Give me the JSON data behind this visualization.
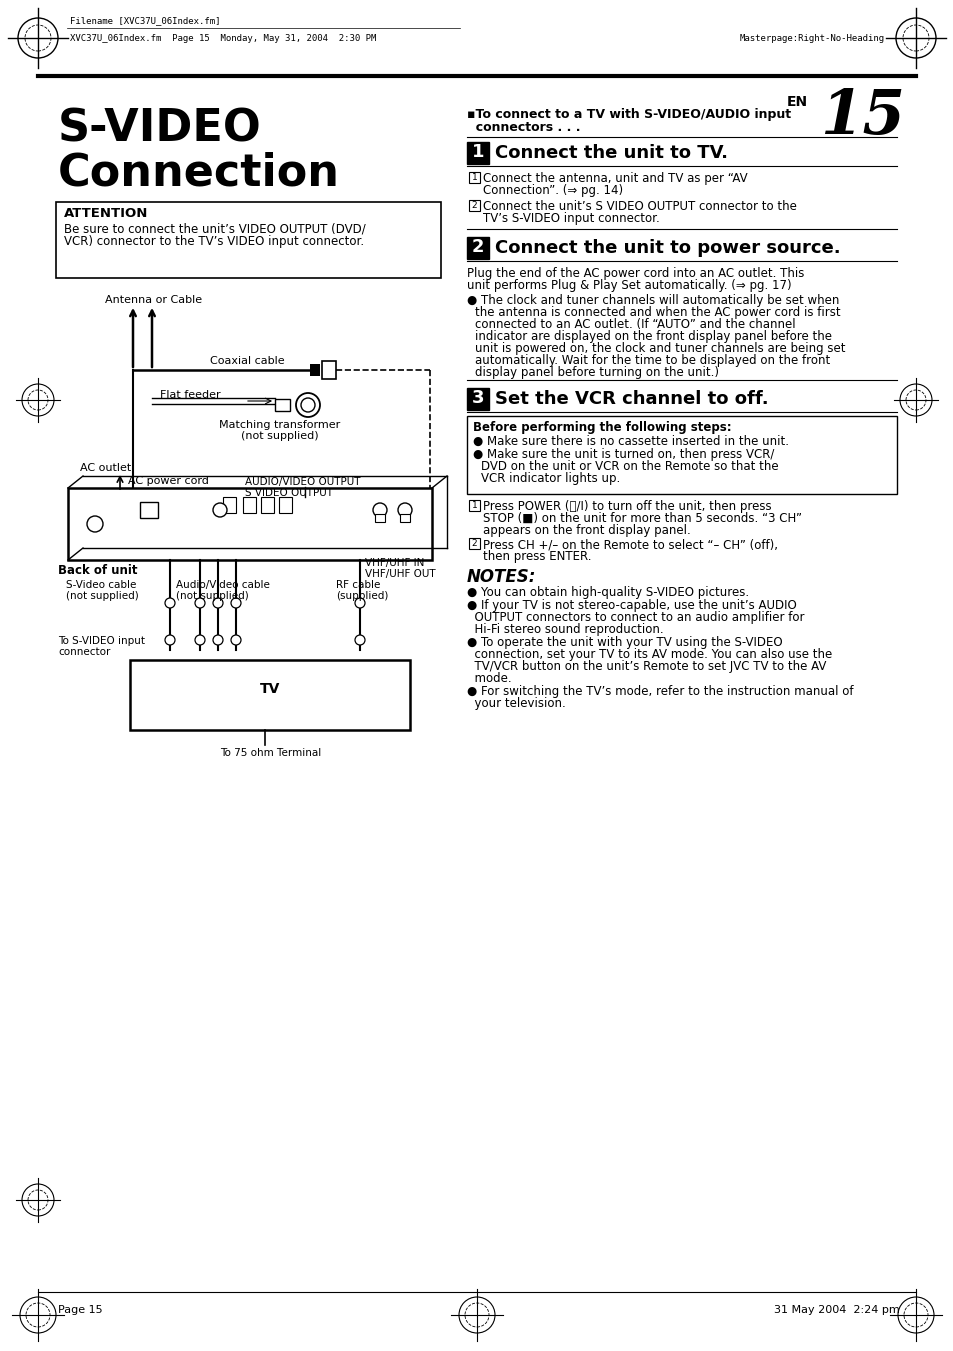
{
  "page_bg": "#ffffff",
  "header_left_text": "Filename [XVC37U_06Index.fm]",
  "header_meta": "XVC37U_06Index.fm  Page 15  Monday, May 31, 2004  2:30 PM",
  "header_right": "Masterpage:Right-No-Heading",
  "page_num": "15",
  "en_label": "EN",
  "footer_left": "Page 15",
  "footer_right": "31 May 2004  2:24 pm",
  "title_line1": "S-VIDEO",
  "title_line2": "Connection",
  "attention_title": "ATTENTION",
  "attention_body1": "Be sure to connect the unit’s VIDEO OUTPUT (DVD/",
  "attention_body2": "VCR) connector to the TV’s VIDEO input connector.",
  "section_intro1": "▪To connect to a TV with S-VIDEO/AUDIO input",
  "section_intro2": "  connectors . . .",
  "step1_num": "1",
  "step1_title": "Connect the unit to TV.",
  "step1_1a": "Connect the antenna, unit and TV as per “AV",
  "step1_1b": "Connection”. (⇒ pg. 14)",
  "step1_2a": "Connect the unit’s S VIDEO OUTPUT connector to the",
  "step1_2b": "TV’s S-VIDEO input connector.",
  "step2_num": "2",
  "step2_title": "Connect the unit to power source.",
  "step2_para1a": "Plug the end of the AC power cord into an AC outlet. This",
  "step2_para1b": "unit performs Plug & Play Set automatically. (⇒ pg. 17)",
  "step2_bullet1a": "The clock and tuner channels will automatically be set when",
  "step2_bullet1b": "the antenna is connected and when the AC power cord is first",
  "step2_bullet1c": "connected to an AC outlet. (If “AUTO” and the channel",
  "step2_bullet1d": "indicator are displayed on the front display panel before the",
  "step2_bullet1e": "unit is powered on, the clock and tuner channels are being set",
  "step2_bullet1f": "automatically. Wait for the time to be displayed on the front",
  "step2_bullet1g": "display panel before turning on the unit.)",
  "step3_num": "3",
  "step3_title": "Set the VCR channel to off.",
  "before_box_title": "Before performing the following steps:",
  "before_box_1": "Make sure there is no cassette inserted in the unit.",
  "before_box_2a": "Make sure the unit is turned on, then press VCR/",
  "before_box_2b": "DVD on the unit or VCR on the Remote so that the",
  "before_box_2c": "VCR indicator lights up.",
  "step3_1a": "Press POWER (⏻/I) to turn off the unit, then press",
  "step3_1b": "STOP (■) on the unit for more than 5 seconds. “3 CH”",
  "step3_1c": "appears on the front display panel.",
  "step3_2a": "Press CH +/– on the Remote to select “– CH” (off),",
  "step3_2b": "then press ENTER.",
  "notes_title": "NOTES:",
  "note1": "● You can obtain high-quality S-VIDEO pictures.",
  "note2a": "● If your TV is not stereo-capable, use the unit’s AUDIO",
  "note2b": "  OUTPUT connectors to connect to an audio amplifier for",
  "note2c": "  Hi-Fi stereo sound reproduction.",
  "note3a": "● To operate the unit with your TV using the S-VIDEO",
  "note3b": "  connection, set your TV to its AV mode. You can also use the",
  "note3c": "  TV/VCR button on the unit’s Remote to set JVC TV to the AV",
  "note3d": "  mode.",
  "note4a": "● For switching the TV’s mode, refer to the instruction manual of",
  "note4b": "  your television.",
  "diag_antenna": "Antenna or Cable",
  "diag_coaxial": "Coaxial cable",
  "diag_flat": "Flat feeder",
  "diag_matching1": "Matching transformer",
  "diag_matching2": "(not supplied)",
  "diag_ac_outlet": "AC outlet",
  "diag_ac_cord": "AC power cord",
  "diag_audio_out": "AUDIO/VIDEO OUTPUT",
  "diag_svideo_out": "S VIDEO OUTPUT",
  "diag_back": "Back of unit",
  "diag_vhf_in": "VHF/UHF IN",
  "diag_vhf_out": "VHF/UHF OUT",
  "diag_svideo_cable1": "S-Video cable",
  "diag_svideo_cable2": "(not supplied)",
  "diag_audio_cable1": "Audio/Video cable",
  "diag_audio_cable2": "(not supplied)",
  "diag_rf_cable1": "RF cable",
  "diag_rf_cable2": "(supplied)",
  "diag_sv_input1": "To S-VIDEO input",
  "diag_sv_input2": "connector",
  "diag_tv": "TV",
  "diag_75ohm": "To 75 ohm Terminal"
}
